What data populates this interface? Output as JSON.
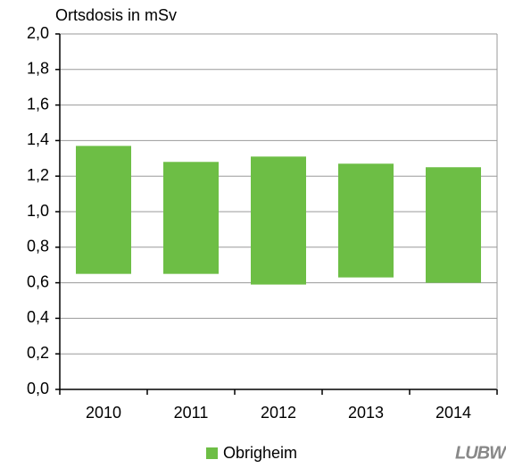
{
  "chart_data": {
    "type": "range_bar",
    "title": "Ortsdosis in mSv",
    "categories": [
      "2010",
      "2011",
      "2012",
      "2013",
      "2014"
    ],
    "series": [
      {
        "name": "Obrigheim",
        "color": "#6dbe45",
        "low": [
          0.65,
          0.65,
          0.59,
          0.63,
          0.6
        ],
        "high": [
          1.37,
          1.28,
          1.31,
          1.27,
          1.25
        ]
      }
    ],
    "ylim": [
      0,
      2
    ],
    "yticks": [
      {
        "value": 0,
        "label": "0,0"
      },
      {
        "value": 0.2,
        "label": "0,2"
      },
      {
        "value": 0.4,
        "label": "0,4"
      },
      {
        "value": 0.6,
        "label": "0,6"
      },
      {
        "value": 0.8,
        "label": "0,8"
      },
      {
        "value": 1,
        "label": "1,0"
      },
      {
        "value": 1.2,
        "label": "1,2"
      },
      {
        "value": 1.4,
        "label": "1,4"
      },
      {
        "value": 1.6,
        "label": "1,6"
      },
      {
        "value": 1.8,
        "label": "1,8"
      },
      {
        "value": 2,
        "label": "2,0"
      }
    ],
    "grid": true,
    "legend": "bottom",
    "logo": "LUBW"
  }
}
